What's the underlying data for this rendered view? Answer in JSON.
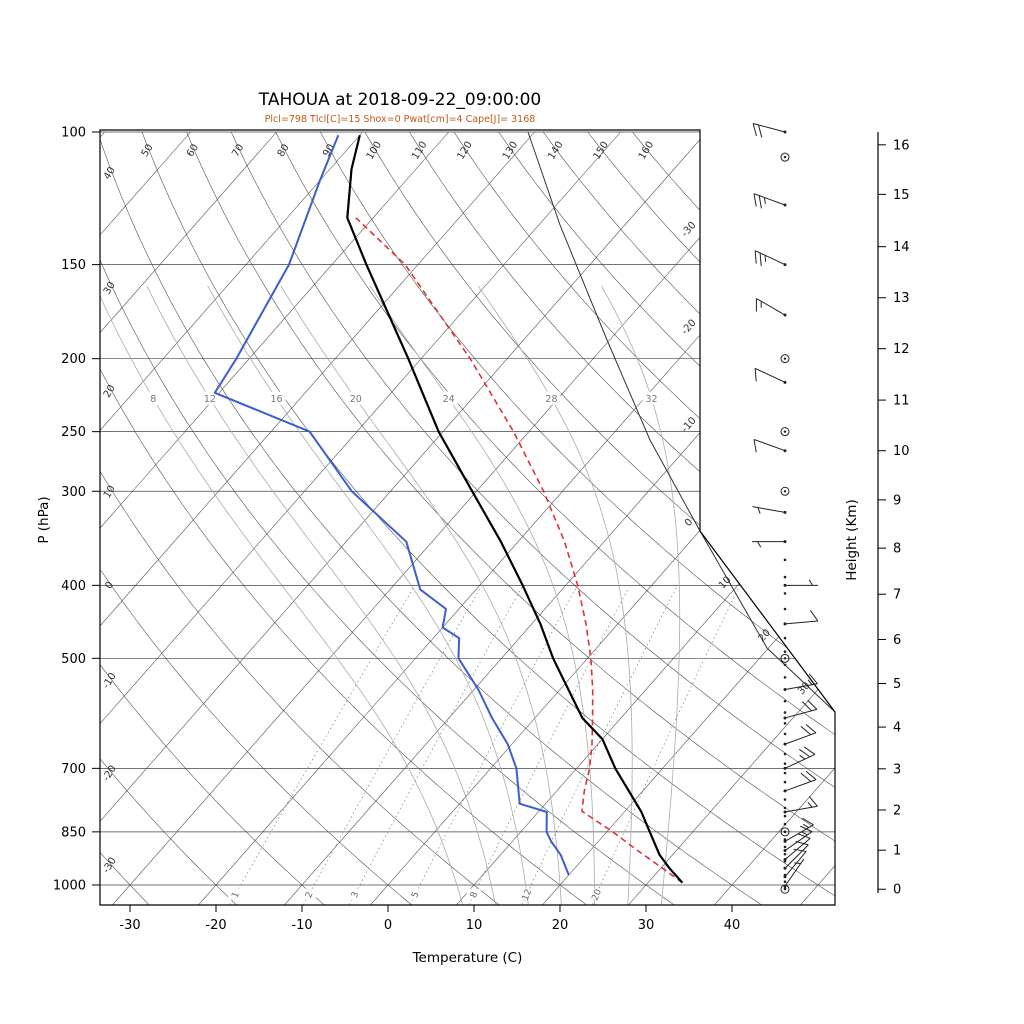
{
  "title": "TAHOUA at 2018-09-22_09:00:00",
  "subtitle": "Plcl=798 Tlcl[C]=15 Shox=0 Pwat[cm]=4 Cape[J]= 3168",
  "axes": {
    "left_label": "P (hPa)",
    "bottom_label": "Temperature (C)",
    "right_label": "Height (Km)",
    "pressure_ticks_hpa": [
      100,
      150,
      200,
      250,
      300,
      400,
      500,
      700,
      850,
      1000
    ],
    "temperature_ticks_c": [
      -30,
      -20,
      -10,
      0,
      10,
      20,
      30,
      40
    ],
    "height_km_ticks": [
      0,
      1,
      2,
      3,
      4,
      5,
      6,
      7,
      8,
      9,
      10,
      11,
      12,
      13,
      14,
      15,
      16
    ],
    "height_tick_pressures_hpa": [
      1013,
      899,
      795,
      701,
      617,
      540,
      472,
      411,
      357,
      308,
      265,
      227,
      194,
      166,
      142,
      121,
      104
    ]
  },
  "grid": {
    "isotherm_c": {
      "min": -110,
      "max": 50,
      "step": 10
    },
    "isotherm_boundary_labels_c": [
      -30,
      -20,
      -10,
      0,
      10,
      20,
      30
    ],
    "dry_adiabat_c": {
      "min": -30,
      "max": 160,
      "step": 10
    },
    "moist_adiabat_c": [
      8,
      12,
      16,
      20,
      24,
      28,
      32
    ],
    "mixing_ratio_g_kg": [
      1,
      2,
      3,
      5,
      8,
      12,
      20
    ]
  },
  "colors": {
    "temperature": "#000000",
    "dewpoint": "#3a5fcd",
    "parcel": "#e03232",
    "subtitle": "#c35817",
    "grid": "#444444",
    "moist": "#aaaaaa",
    "mixing": "#888888",
    "barbs": "#222222"
  },
  "chart_data": {
    "type": "line",
    "chart_kind": "skew-t-log-p-sounding",
    "station": "TAHOUA",
    "timestamp": "2018-09-22_09:00:00",
    "parameters": {
      "Plcl": 798,
      "Tlcl_C": 15,
      "Shox": 0,
      "Pwat_cm": 4,
      "Cape_J": 3168
    },
    "xlabel": "Temperature (C)",
    "ylabel": "P (hPa)",
    "y2label": "Height (Km)",
    "x_range_c": [
      -30,
      40
    ],
    "p_range_hpa": [
      100,
      1063
    ],
    "series": [
      {
        "name": "temperature",
        "style": "solid",
        "points_p_t": [
          [
            993,
            34
          ],
          [
            950,
            31
          ],
          [
            912,
            28.5
          ],
          [
            850,
            25
          ],
          [
            800,
            22
          ],
          [
            700,
            14.5
          ],
          [
            640,
            10
          ],
          [
            600,
            5.5
          ],
          [
            500,
            -4
          ],
          [
            450,
            -9
          ],
          [
            400,
            -15
          ],
          [
            350,
            -22
          ],
          [
            300,
            -30.5
          ],
          [
            250,
            -40.5
          ],
          [
            200,
            -51.5
          ],
          [
            150,
            -66
          ],
          [
            130,
            -73
          ],
          [
            112,
            -77.5
          ],
          [
            101,
            -80
          ]
        ]
      },
      {
        "name": "dewpoint",
        "style": "solid",
        "points_p_t": [
          [
            970,
            20
          ],
          [
            912,
            17
          ],
          [
            875,
            14.5
          ],
          [
            850,
            13
          ],
          [
            800,
            11
          ],
          [
            780,
            7
          ],
          [
            700,
            3
          ],
          [
            650,
            -0.5
          ],
          [
            600,
            -5
          ],
          [
            550,
            -9.5
          ],
          [
            500,
            -15
          ],
          [
            470,
            -17
          ],
          [
            455,
            -20
          ],
          [
            430,
            -21.5
          ],
          [
            405,
            -26.5
          ],
          [
            350,
            -33
          ],
          [
            300,
            -44.5
          ],
          [
            250,
            -55.5
          ],
          [
            222,
            -70.5
          ],
          [
            200,
            -71.5
          ],
          [
            150,
            -75
          ],
          [
            116,
            -80
          ],
          [
            101,
            -82.5
          ]
        ]
      },
      {
        "name": "parcel",
        "style": "dashed",
        "points_p_t": [
          [
            993,
            34
          ],
          [
            950,
            30.2
          ],
          [
            900,
            25.5
          ],
          [
            850,
            20.7
          ],
          [
            798,
            15
          ],
          [
            750,
            13.2
          ],
          [
            700,
            11.5
          ],
          [
            650,
            9.3
          ],
          [
            600,
            6.7
          ],
          [
            550,
            3.8
          ],
          [
            500,
            0.4
          ],
          [
            450,
            -3.7
          ],
          [
            400,
            -8.6
          ],
          [
            350,
            -14.6
          ],
          [
            300,
            -22.2
          ],
          [
            250,
            -31.8
          ],
          [
            200,
            -44.3
          ],
          [
            150,
            -61.5
          ],
          [
            130,
            -72
          ]
        ]
      }
    ],
    "wind_barbs": [
      {
        "p": 100,
        "dir": 285,
        "spd": 20
      },
      {
        "p": 108,
        "calm": true
      },
      {
        "p": 125,
        "dir": 290,
        "spd": 25
      },
      {
        "p": 150,
        "dir": 295,
        "spd": 25
      },
      {
        "p": 175,
        "dir": 300,
        "spd": 15
      },
      {
        "p": 200,
        "calm": true
      },
      {
        "p": 215,
        "dir": 295,
        "spd": 10
      },
      {
        "p": 250,
        "calm": true
      },
      {
        "p": 265,
        "dir": 290,
        "spd": 10
      },
      {
        "p": 300,
        "calm": true
      },
      {
        "p": 320,
        "dir": 280,
        "spd": 5
      },
      {
        "p": 350,
        "dir": 270,
        "spd": 5
      },
      {
        "p": 400,
        "dir": 90,
        "spd": 5
      },
      {
        "p": 450,
        "dir": 85,
        "spd": 10
      },
      {
        "p": 500,
        "calm": true
      },
      {
        "p": 550,
        "dir": 80,
        "spd": 15
      },
      {
        "p": 600,
        "dir": 75,
        "spd": 20
      },
      {
        "p": 650,
        "dir": 70,
        "spd": 20
      },
      {
        "p": 700,
        "dir": 65,
        "spd": 25
      },
      {
        "p": 750,
        "dir": 70,
        "spd": 20
      },
      {
        "p": 800,
        "dir": 80,
        "spd": 15
      },
      {
        "p": 850,
        "calm": true
      },
      {
        "p": 875,
        "dir": 60,
        "spd": 15
      },
      {
        "p": 900,
        "dir": 55,
        "spd": 15
      },
      {
        "p": 925,
        "dir": 50,
        "spd": 10
      },
      {
        "p": 950,
        "dir": 45,
        "spd": 10
      },
      {
        "p": 975,
        "dir": 40,
        "spd": 10
      },
      {
        "p": 1003,
        "dir": 35,
        "spd": 5
      },
      {
        "p": 1013,
        "calm": true
      }
    ],
    "significant_level_dots_hpa": [
      1010,
      990,
      970,
      950,
      930,
      910,
      890,
      870,
      850,
      830,
      810,
      790,
      770,
      750,
      730,
      710,
      690,
      670,
      650,
      630,
      610,
      590,
      570,
      550,
      530,
      510,
      490,
      470,
      450,
      430,
      410,
      390,
      370
    ]
  }
}
